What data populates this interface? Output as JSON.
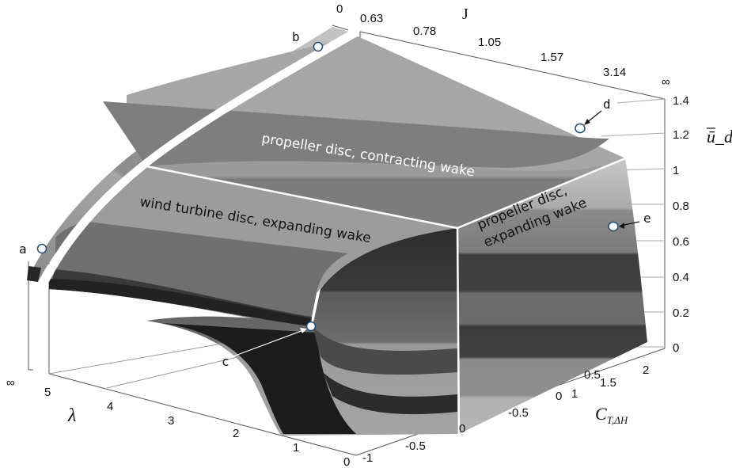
{
  "chart_data": {
    "type": "surface",
    "z_axis": {
      "label": "ū_d",
      "ticks": [
        "0",
        "0.2",
        "0.4",
        "0.6",
        "0.8",
        "1",
        "1.2",
        "1.4"
      ],
      "range": [
        0,
        1.4
      ]
    },
    "lambda_axis": {
      "label": "λ",
      "ticks": [
        "5",
        "4",
        "3",
        "2",
        "1",
        "0"
      ],
      "end_label": "∞"
    },
    "j_axis": {
      "label": "J",
      "ticks": [
        "0",
        "0.63",
        "0.78",
        "1.05",
        "1.57",
        "3.14"
      ],
      "end_label": "∞"
    },
    "ct_axis": {
      "label": "C",
      "label_sub": "T,ΔH",
      "ticks_front": [
        "-1",
        "-0.5",
        "0"
      ],
      "ticks_right": [
        "-0.5",
        "0",
        "0.5",
        "1",
        "1.5",
        "2"
      ]
    },
    "regions": [
      "propeller disc, contracting wake",
      "wind turbine disc, expanding wake",
      "propeller disc,",
      "expanding wake"
    ],
    "markers": [
      {
        "letter": "a",
        "u_d": 1.2
      },
      {
        "letter": "b",
        "u_d": 1.4
      },
      {
        "letter": "c",
        "u_d": 0.15
      },
      {
        "letter": "d",
        "u_d": 1.23
      },
      {
        "letter": "e",
        "u_d": 0.7
      }
    ],
    "grayscale_bands": [
      "#1c1c1c",
      "#303030",
      "#4c4c4c",
      "#6a6a6a",
      "#888888",
      "#a4a4a4",
      "#bcbcbc",
      "#d2d2d2"
    ]
  }
}
